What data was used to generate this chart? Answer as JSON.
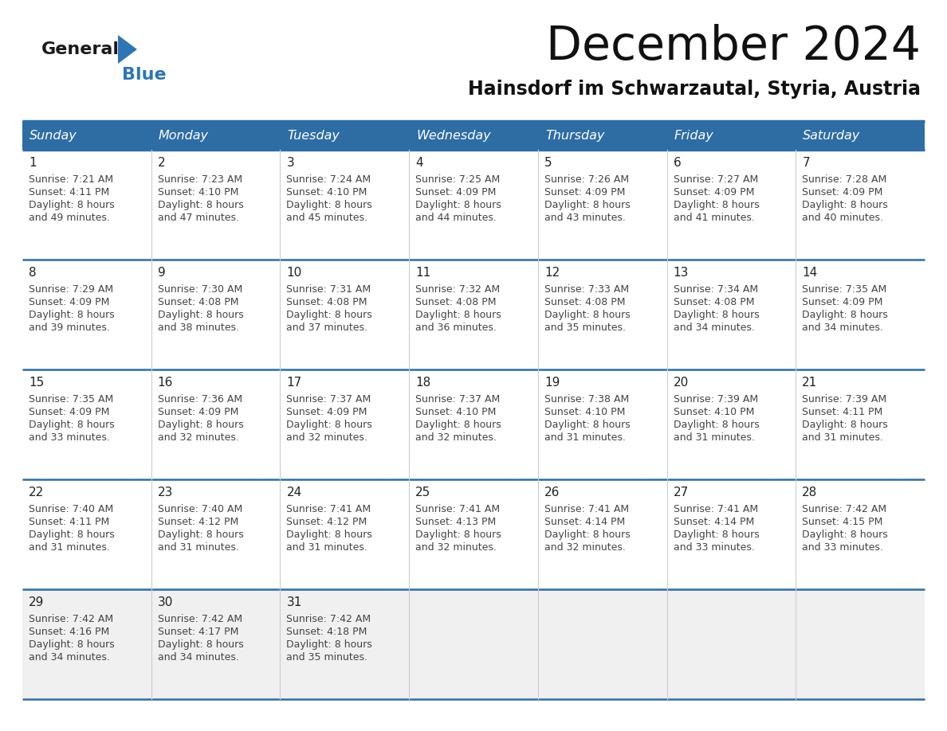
{
  "title": "December 2024",
  "subtitle": "Hainsdorf im Schwarzautal, Styria, Austria",
  "header_color": "#2E6DA4",
  "header_text_color": "#FFFFFF",
  "day_names": [
    "Sunday",
    "Monday",
    "Tuesday",
    "Wednesday",
    "Thursday",
    "Friday",
    "Saturday"
  ],
  "bg_color": "#FFFFFF",
  "cell_bg_white": "#FFFFFF",
  "cell_bg_grey": "#F0F0F0",
  "border_color": "#2E6DA4",
  "row_border_color": "#2E6DA4",
  "col_border_color": "#CCCCCC",
  "days": [
    {
      "day": 1,
      "col": 0,
      "row": 0,
      "sunrise": "7:21 AM",
      "sunset": "4:11 PM",
      "daylight_minutes": "49"
    },
    {
      "day": 2,
      "col": 1,
      "row": 0,
      "sunrise": "7:23 AM",
      "sunset": "4:10 PM",
      "daylight_minutes": "47"
    },
    {
      "day": 3,
      "col": 2,
      "row": 0,
      "sunrise": "7:24 AM",
      "sunset": "4:10 PM",
      "daylight_minutes": "45"
    },
    {
      "day": 4,
      "col": 3,
      "row": 0,
      "sunrise": "7:25 AM",
      "sunset": "4:09 PM",
      "daylight_minutes": "44"
    },
    {
      "day": 5,
      "col": 4,
      "row": 0,
      "sunrise": "7:26 AM",
      "sunset": "4:09 PM",
      "daylight_minutes": "43"
    },
    {
      "day": 6,
      "col": 5,
      "row": 0,
      "sunrise": "7:27 AM",
      "sunset": "4:09 PM",
      "daylight_minutes": "41"
    },
    {
      "day": 7,
      "col": 6,
      "row": 0,
      "sunrise": "7:28 AM",
      "sunset": "4:09 PM",
      "daylight_minutes": "40"
    },
    {
      "day": 8,
      "col": 0,
      "row": 1,
      "sunrise": "7:29 AM",
      "sunset": "4:09 PM",
      "daylight_minutes": "39"
    },
    {
      "day": 9,
      "col": 1,
      "row": 1,
      "sunrise": "7:30 AM",
      "sunset": "4:08 PM",
      "daylight_minutes": "38"
    },
    {
      "day": 10,
      "col": 2,
      "row": 1,
      "sunrise": "7:31 AM",
      "sunset": "4:08 PM",
      "daylight_minutes": "37"
    },
    {
      "day": 11,
      "col": 3,
      "row": 1,
      "sunrise": "7:32 AM",
      "sunset": "4:08 PM",
      "daylight_minutes": "36"
    },
    {
      "day": 12,
      "col": 4,
      "row": 1,
      "sunrise": "7:33 AM",
      "sunset": "4:08 PM",
      "daylight_minutes": "35"
    },
    {
      "day": 13,
      "col": 5,
      "row": 1,
      "sunrise": "7:34 AM",
      "sunset": "4:08 PM",
      "daylight_minutes": "34"
    },
    {
      "day": 14,
      "col": 6,
      "row": 1,
      "sunrise": "7:35 AM",
      "sunset": "4:09 PM",
      "daylight_minutes": "34"
    },
    {
      "day": 15,
      "col": 0,
      "row": 2,
      "sunrise": "7:35 AM",
      "sunset": "4:09 PM",
      "daylight_minutes": "33"
    },
    {
      "day": 16,
      "col": 1,
      "row": 2,
      "sunrise": "7:36 AM",
      "sunset": "4:09 PM",
      "daylight_minutes": "32"
    },
    {
      "day": 17,
      "col": 2,
      "row": 2,
      "sunrise": "7:37 AM",
      "sunset": "4:09 PM",
      "daylight_minutes": "32"
    },
    {
      "day": 18,
      "col": 3,
      "row": 2,
      "sunrise": "7:37 AM",
      "sunset": "4:10 PM",
      "daylight_minutes": "32"
    },
    {
      "day": 19,
      "col": 4,
      "row": 2,
      "sunrise": "7:38 AM",
      "sunset": "4:10 PM",
      "daylight_minutes": "31"
    },
    {
      "day": 20,
      "col": 5,
      "row": 2,
      "sunrise": "7:39 AM",
      "sunset": "4:10 PM",
      "daylight_minutes": "31"
    },
    {
      "day": 21,
      "col": 6,
      "row": 2,
      "sunrise": "7:39 AM",
      "sunset": "4:11 PM",
      "daylight_minutes": "31"
    },
    {
      "day": 22,
      "col": 0,
      "row": 3,
      "sunrise": "7:40 AM",
      "sunset": "4:11 PM",
      "daylight_minutes": "31"
    },
    {
      "day": 23,
      "col": 1,
      "row": 3,
      "sunrise": "7:40 AM",
      "sunset": "4:12 PM",
      "daylight_minutes": "31"
    },
    {
      "day": 24,
      "col": 2,
      "row": 3,
      "sunrise": "7:41 AM",
      "sunset": "4:12 PM",
      "daylight_minutes": "31"
    },
    {
      "day": 25,
      "col": 3,
      "row": 3,
      "sunrise": "7:41 AM",
      "sunset": "4:13 PM",
      "daylight_minutes": "32"
    },
    {
      "day": 26,
      "col": 4,
      "row": 3,
      "sunrise": "7:41 AM",
      "sunset": "4:14 PM",
      "daylight_minutes": "32"
    },
    {
      "day": 27,
      "col": 5,
      "row": 3,
      "sunrise": "7:41 AM",
      "sunset": "4:14 PM",
      "daylight_minutes": "33"
    },
    {
      "day": 28,
      "col": 6,
      "row": 3,
      "sunrise": "7:42 AM",
      "sunset": "4:15 PM",
      "daylight_minutes": "33"
    },
    {
      "day": 29,
      "col": 0,
      "row": 4,
      "sunrise": "7:42 AM",
      "sunset": "4:16 PM",
      "daylight_minutes": "34"
    },
    {
      "day": 30,
      "col": 1,
      "row": 4,
      "sunrise": "7:42 AM",
      "sunset": "4:17 PM",
      "daylight_minutes": "34"
    },
    {
      "day": 31,
      "col": 2,
      "row": 4,
      "sunrise": "7:42 AM",
      "sunset": "4:18 PM",
      "daylight_minutes": "35"
    }
  ],
  "num_rows": 5,
  "logo_general_color": "#1a1a1a",
  "logo_blue_color": "#2E75B6"
}
